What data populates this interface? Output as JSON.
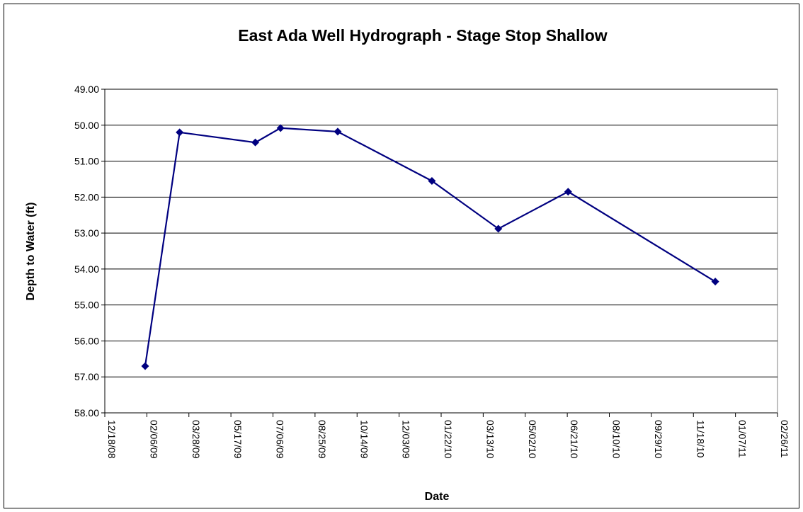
{
  "chart_data": {
    "type": "line",
    "title": "East Ada Well Hydrograph - Stage Stop Shallow",
    "x_label": "Date",
    "y_label": "Depth to Water (ft)",
    "x": [
      "2009-02-04",
      "2009-03-17",
      "2009-06-15",
      "2009-07-15",
      "2009-09-21",
      "2010-01-11",
      "2010-03-31",
      "2010-06-22",
      "2010-12-14"
    ],
    "series": [
      {
        "name": "Stage Stop Shallow",
        "color": "#000080",
        "values": [
          56.7,
          50.2,
          50.48,
          50.08,
          50.18,
          51.55,
          52.88,
          51.85,
          54.35
        ]
      }
    ],
    "xlim": [
      "2008-12-18",
      "2011-02-26"
    ],
    "xticks": [
      {
        "value": "2008-12-18",
        "label": "12/18/08"
      },
      {
        "value": "2009-02-06",
        "label": "02/06/09"
      },
      {
        "value": "2009-03-28",
        "label": "03/28/09"
      },
      {
        "value": "2009-05-17",
        "label": "05/17/09"
      },
      {
        "value": "2009-07-06",
        "label": "07/06/09"
      },
      {
        "value": "2009-08-25",
        "label": "08/25/09"
      },
      {
        "value": "2009-10-14",
        "label": "10/14/09"
      },
      {
        "value": "2009-12-03",
        "label": "12/03/09"
      },
      {
        "value": "2010-01-22",
        "label": "01/22/10"
      },
      {
        "value": "2010-03-13",
        "label": "03/13/10"
      },
      {
        "value": "2010-05-02",
        "label": "05/02/10"
      },
      {
        "value": "2010-06-21",
        "label": "06/21/10"
      },
      {
        "value": "2010-08-10",
        "label": "08/10/10"
      },
      {
        "value": "2010-09-29",
        "label": "09/29/10"
      },
      {
        "value": "2010-11-18",
        "label": "11/18/10"
      },
      {
        "value": "2011-01-07",
        "label": "01/07/11"
      },
      {
        "value": "2011-02-26",
        "label": "02/26/11"
      }
    ],
    "ylim": [
      49,
      58
    ],
    "y_inverted": true,
    "yticks": [
      {
        "value": 49,
        "label": "49.00"
      },
      {
        "value": 50,
        "label": "50.00"
      },
      {
        "value": 51,
        "label": "51.00"
      },
      {
        "value": 52,
        "label": "52.00"
      },
      {
        "value": 53,
        "label": "53.00"
      },
      {
        "value": 54,
        "label": "54.00"
      },
      {
        "value": 55,
        "label": "55.00"
      },
      {
        "value": 56,
        "label": "56.00"
      },
      {
        "value": 57,
        "label": "57.00"
      },
      {
        "value": 58,
        "label": "58.00"
      }
    ],
    "grid": true
  }
}
